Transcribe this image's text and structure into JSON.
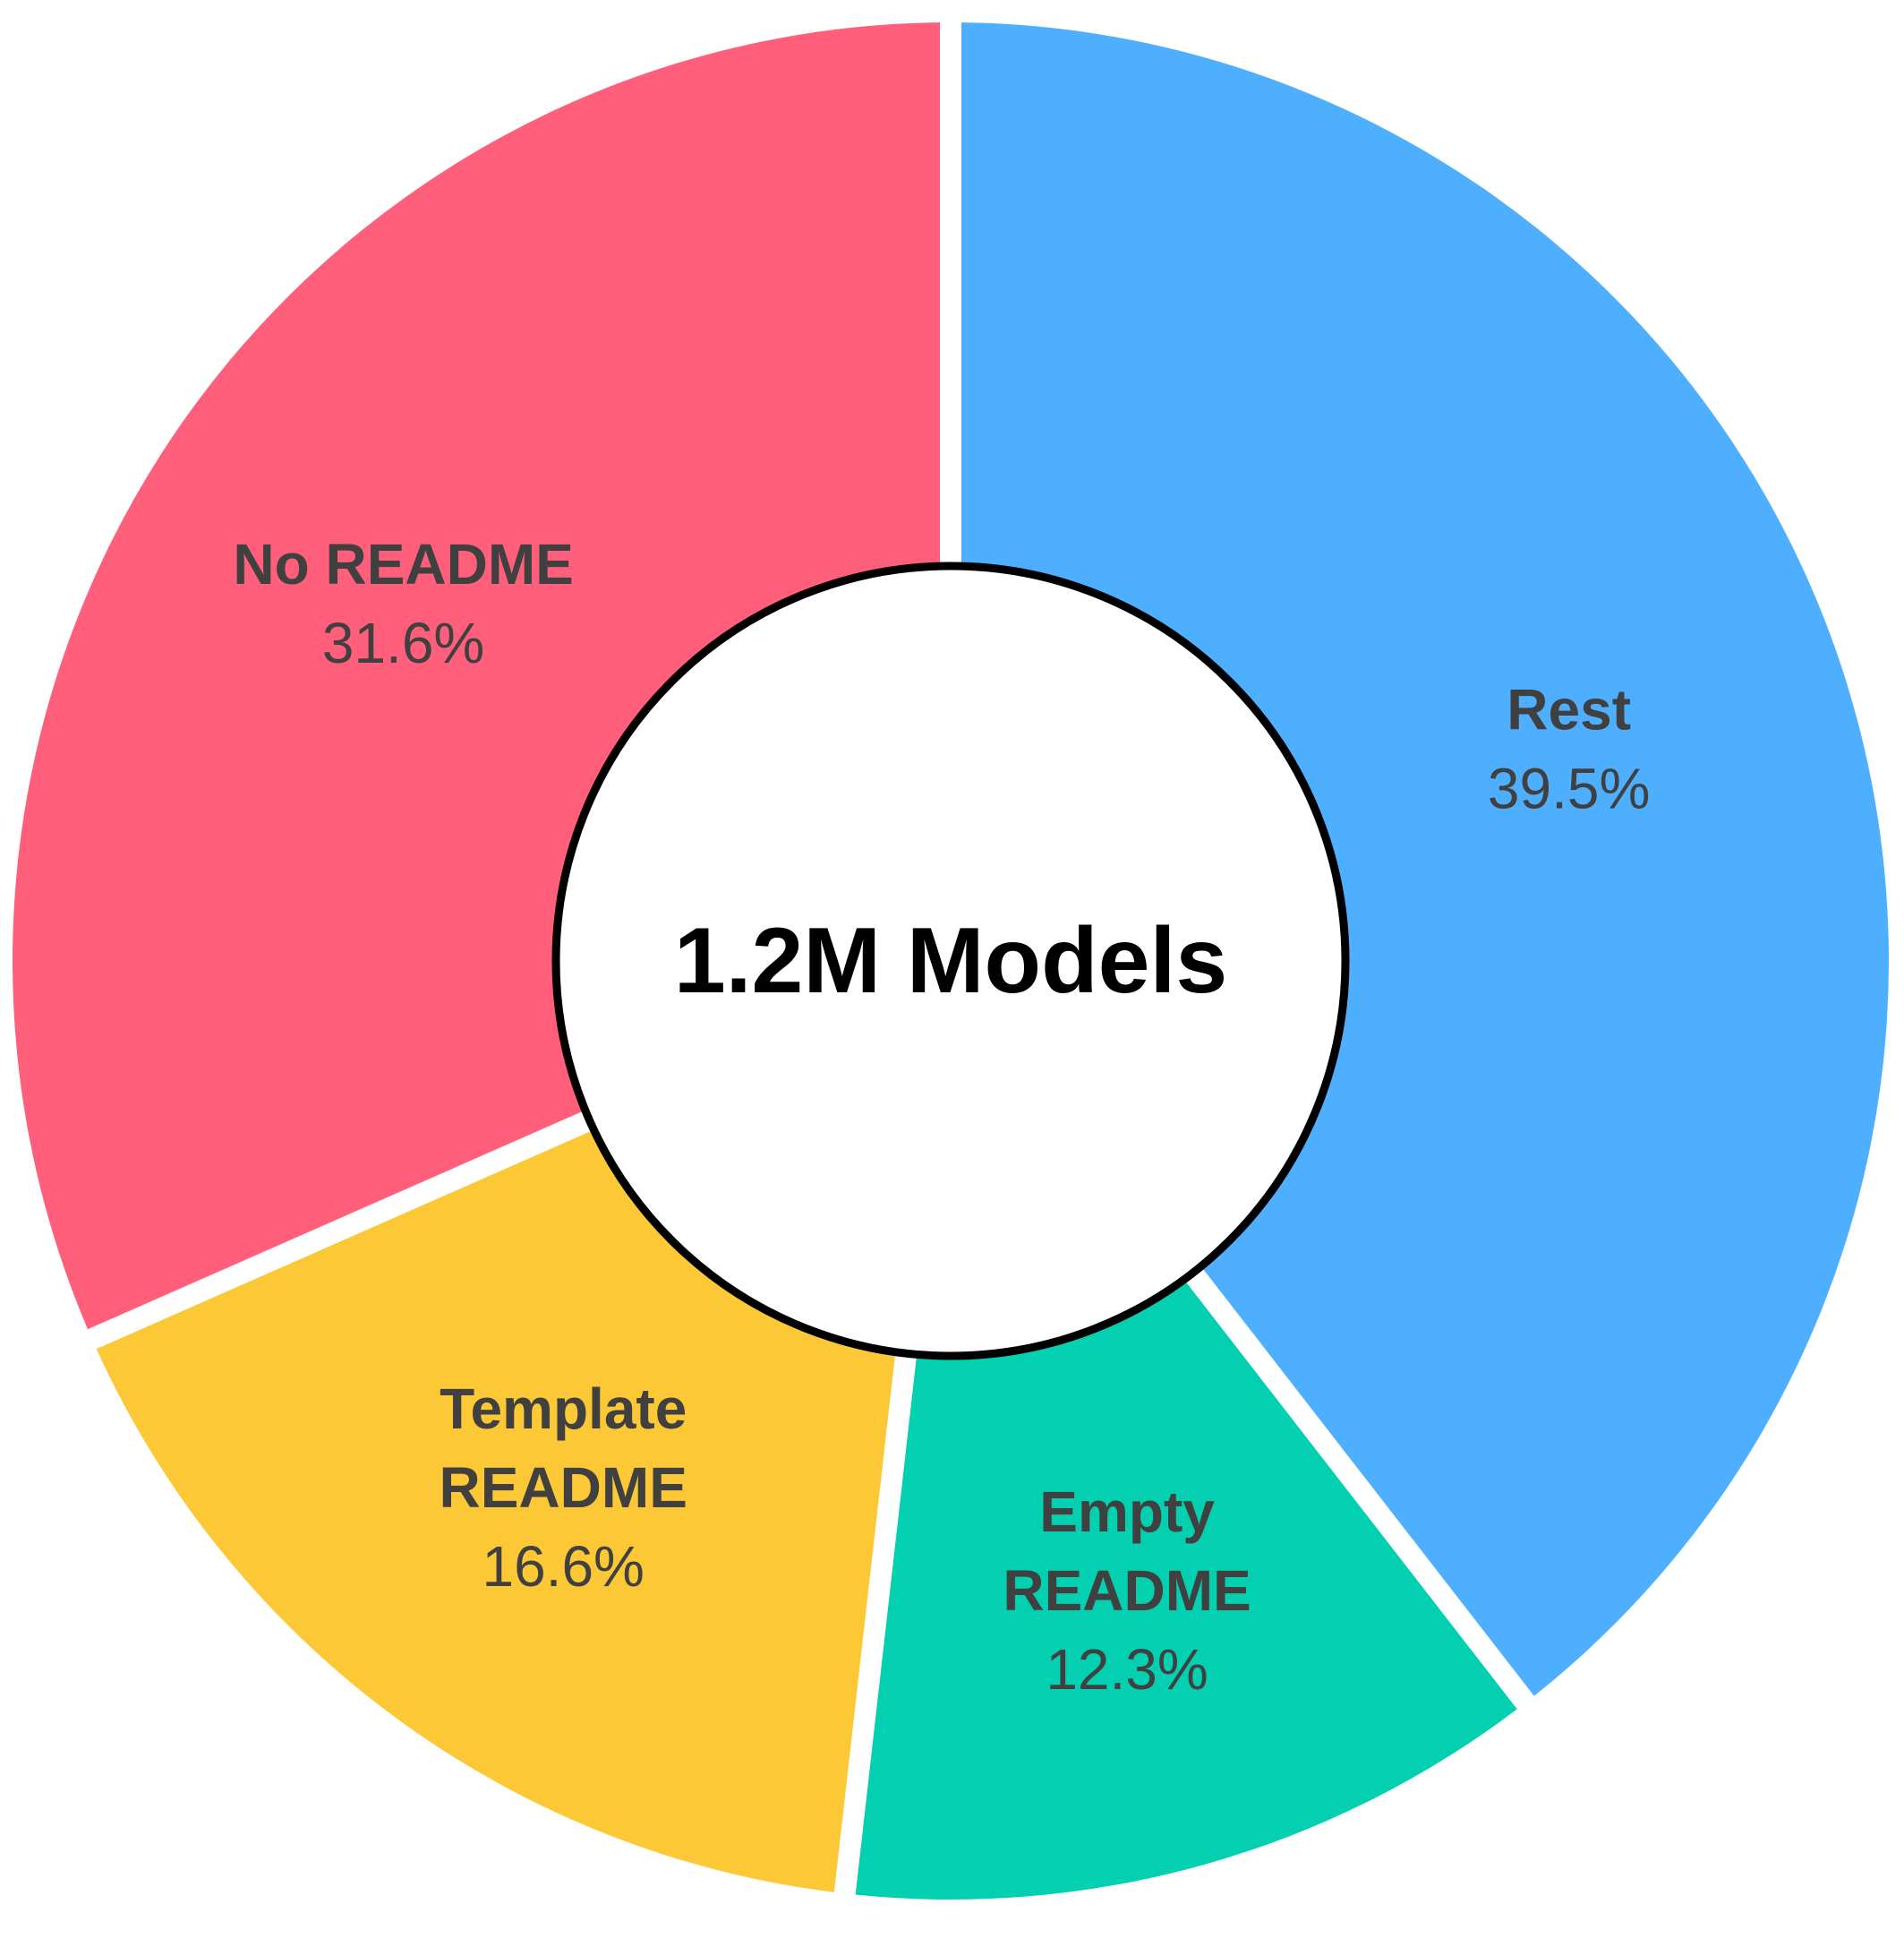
{
  "chart_data": {
    "type": "pie",
    "donut": true,
    "center_label": "1.2M Models",
    "categories": [
      "Rest",
      "Empty README",
      "Template README",
      "No README"
    ],
    "label_lines": [
      [
        "Rest"
      ],
      [
        "Empty",
        "README"
      ],
      [
        "Template",
        "README"
      ],
      [
        "No README"
      ]
    ],
    "values": [
      39.5,
      12.3,
      16.6,
      31.6
    ],
    "value_labels": [
      "39.5%",
      "12.3%",
      "16.6%",
      "31.6%"
    ],
    "colors": [
      "#4fafff",
      "#02d0b0",
      "#fcc836",
      "#ff5f7a"
    ],
    "start": "top",
    "direction": "clockwise",
    "legend": "none"
  }
}
